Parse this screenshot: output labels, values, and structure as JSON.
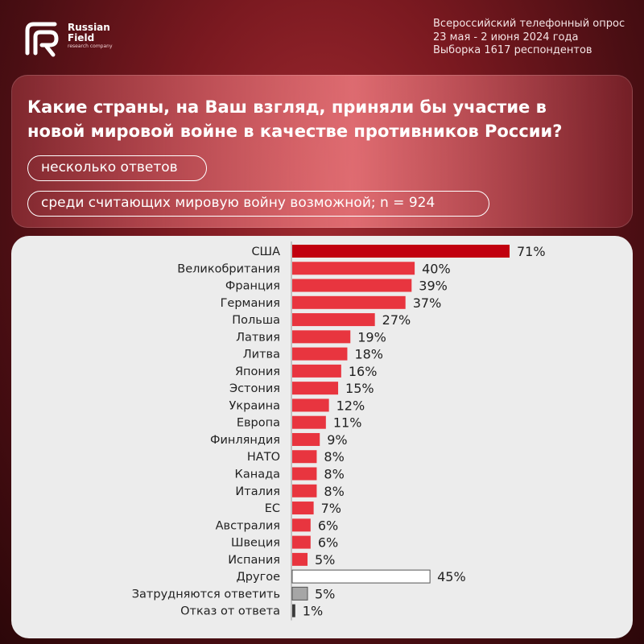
{
  "brand": {
    "name_line1": "Russian",
    "name_line2": "Field",
    "tagline": "research company",
    "logo_icon": "rf-logo-icon"
  },
  "survey_info": {
    "line1": "Всероссийский телефонный опрос",
    "line2": "23 мая - 2 июня 2024 года",
    "line3": "Выборка 1617 респондентов"
  },
  "question": "Какие страны, на Ваш взгляд, приняли бы участие в новой мировой войне в качестве противников России?",
  "notes": {
    "multiple": "несколько ответов",
    "base": "среди считающих мировую войну возможной; n = 924"
  },
  "colors": {
    "top_bar": "#c1000f",
    "bar": "#e8353f",
    "other_bar": "#ffffff",
    "hard_to_say_bar": "#a6a6a6",
    "refuse_bar": "#3a3a3a",
    "axis": "#999999"
  },
  "chart_data": {
    "type": "bar",
    "orientation": "horizontal",
    "value_suffix": "%",
    "xlim": [
      0,
      71
    ],
    "categories": [
      "США",
      "Великобритания",
      "Франция",
      "Германия",
      "Польша",
      "Латвия",
      "Литва",
      "Япония",
      "Эстония",
      "Украина",
      "Европа",
      "Финляндия",
      "НАТО",
      "Канада",
      "Италия",
      "ЕС",
      "Австралия",
      "Швеция",
      "Испания",
      "Другое",
      "Затрудняются ответить",
      "Отказ от ответа"
    ],
    "values": [
      71,
      40,
      39,
      37,
      27,
      19,
      18,
      16,
      15,
      12,
      11,
      9,
      8,
      8,
      8,
      7,
      6,
      6,
      5,
      45,
      5,
      1
    ],
    "value_labels": [
      "71%",
      "40%",
      "39%",
      "37%",
      "27%",
      "19%",
      "18%",
      "16%",
      "15%",
      "12%",
      "11%",
      "9%",
      "8%",
      "8%",
      "8%",
      "7%",
      "6%",
      "6%",
      "5%",
      "45%",
      "5%",
      "1%"
    ],
    "bar_styles": [
      "top",
      "bar",
      "bar",
      "bar",
      "bar",
      "bar",
      "bar",
      "bar",
      "bar",
      "bar",
      "bar",
      "bar",
      "bar",
      "bar",
      "bar",
      "bar",
      "bar",
      "bar",
      "bar",
      "other",
      "hard",
      "refuse"
    ]
  }
}
